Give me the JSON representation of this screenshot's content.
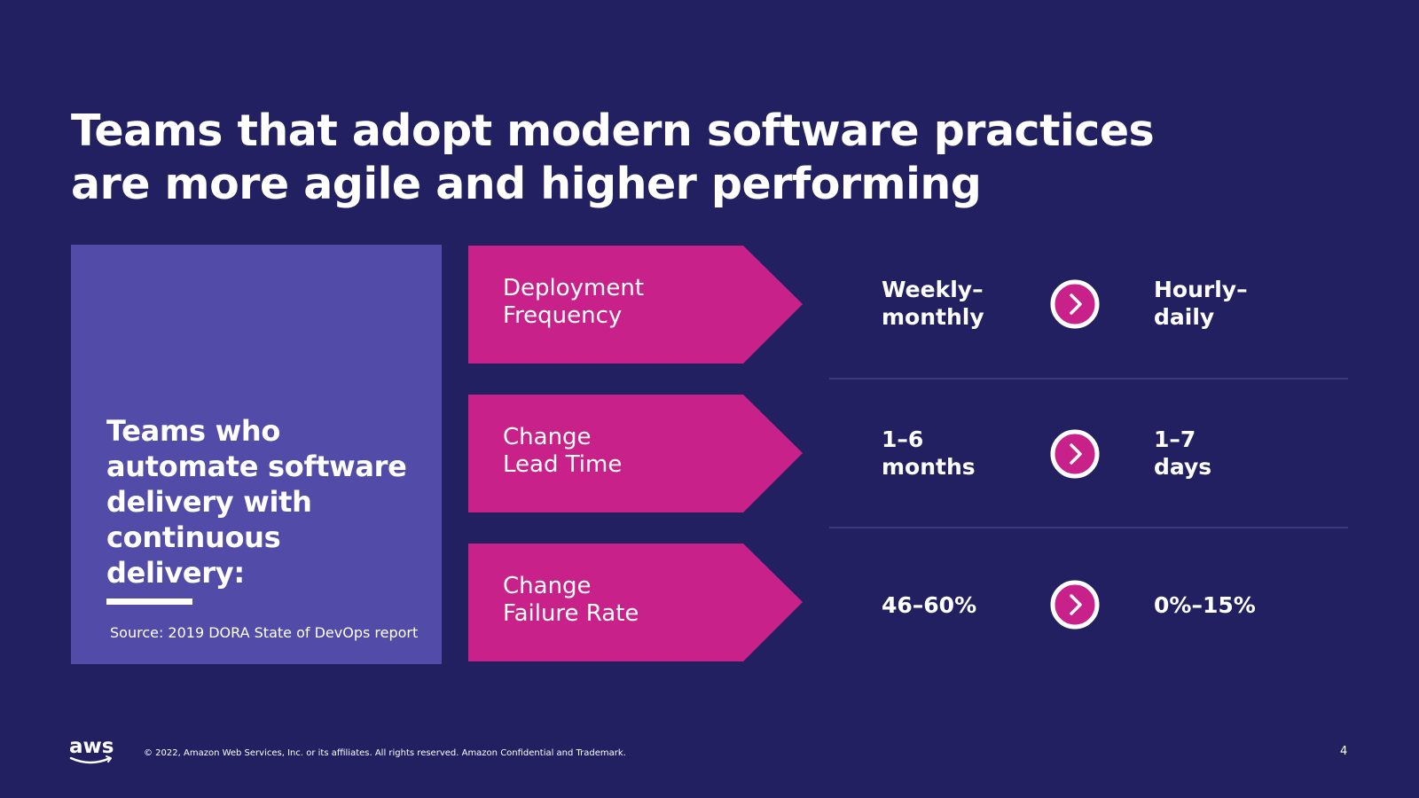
{
  "slide": {
    "title_line1": "Teams that adopt modern software practices",
    "title_line2": "are more agile and higher performing"
  },
  "left_panel": {
    "heading": "Teams who automate software delivery with continuous delivery:",
    "source": "Source: 2019 DORA State of DevOps report"
  },
  "metrics": [
    {
      "label_line1": "Deployment",
      "label_line2": "Frequency",
      "from_line1": "Weekly–",
      "from_line2": "monthly",
      "to_line1": "Hourly–",
      "to_line2": "daily",
      "arrow_icon": "chevron-right-icon"
    },
    {
      "label_line1": "Change",
      "label_line2": "Lead Time",
      "from_line1": "1–6",
      "from_line2": "months",
      "to_line1": "1–7",
      "to_line2": "days",
      "arrow_icon": "chevron-right-icon"
    },
    {
      "label_line1": "Change",
      "label_line2": "Failure Rate",
      "from_line1": "46–60%",
      "from_line2": "",
      "to_line1": "0%–15%",
      "to_line2": "",
      "arrow_icon": "chevron-right-icon"
    }
  ],
  "footer": {
    "logo_text": "aws",
    "copyright": "© 2022, Amazon Web Services, Inc. or its affiliates. All rights reserved. Amazon Confidential and Trademark.",
    "page_number": "4"
  },
  "colors": {
    "background": "#232062",
    "panel": "#524ca8",
    "accent": "#c8228a",
    "text": "#ffffff"
  }
}
